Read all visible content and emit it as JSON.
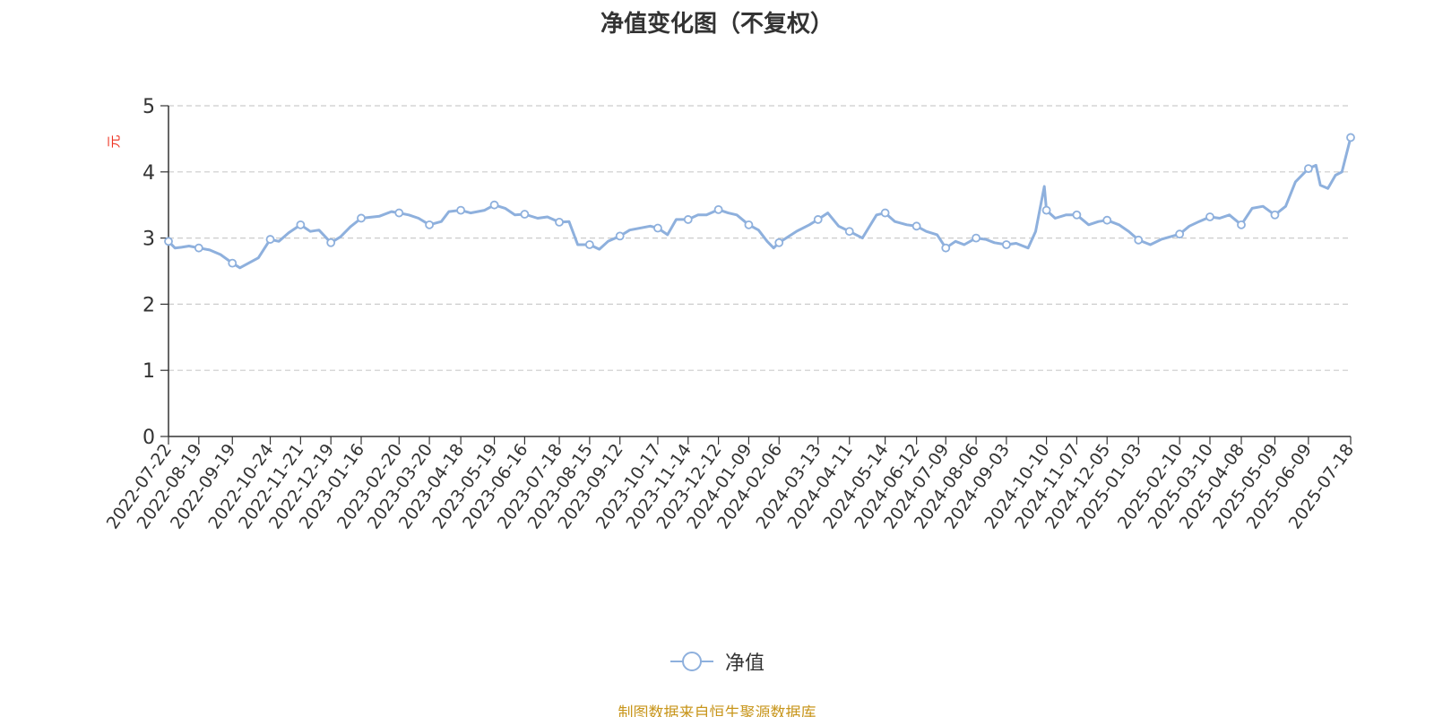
{
  "chart_data": {
    "type": "line",
    "title": "净值变化图（不复权）",
    "ylabel": "元",
    "ylim": [
      0,
      5
    ],
    "yticks": [
      "0",
      "1",
      "2",
      "3",
      "4",
      "5"
    ],
    "grid": true,
    "legend_position": "bottom-center",
    "x_tick_labels": [
      "2022-07-22",
      "2022-08-19",
      "2022-09-19",
      "2022-10-24",
      "2022-11-21",
      "2022-12-19",
      "2023-01-16",
      "2023-02-20",
      "2023-03-20",
      "2023-04-18",
      "2023-05-19",
      "2023-06-16",
      "2023-07-18",
      "2023-08-15",
      "2023-09-12",
      "2023-10-17",
      "2023-11-14",
      "2023-12-12",
      "2024-01-09",
      "2024-02-06",
      "2024-03-13",
      "2024-04-11",
      "2024-05-14",
      "2024-06-12",
      "2024-07-09",
      "2024-08-06",
      "2024-09-03",
      "2024-10-10",
      "2024-11-07",
      "2024-12-05",
      "2025-01-03",
      "2025-02-10",
      "2025-03-10",
      "2025-04-08",
      "2025-05-09",
      "2025-06-09",
      "2025-07-18"
    ],
    "series": [
      {
        "name": "净值",
        "color": "#8eb0dd",
        "x": [
          "2022-07-22",
          "2022-07-28",
          "2022-08-03",
          "2022-08-10",
          "2022-08-19",
          "2022-08-29",
          "2022-09-08",
          "2022-09-19",
          "2022-09-26",
          "2022-10-13",
          "2022-10-24",
          "2022-11-01",
          "2022-11-10",
          "2022-11-21",
          "2022-11-30",
          "2022-12-08",
          "2022-12-19",
          "2022-12-28",
          "2023-01-06",
          "2023-01-16",
          "2023-02-02",
          "2023-02-13",
          "2023-02-20",
          "2023-03-01",
          "2023-03-10",
          "2023-03-20",
          "2023-03-31",
          "2023-04-07",
          "2023-04-18",
          "2023-04-27",
          "2023-05-10",
          "2023-05-19",
          "2023-05-29",
          "2023-06-07",
          "2023-06-16",
          "2023-06-28",
          "2023-07-07",
          "2023-07-18",
          "2023-07-27",
          "2023-08-04",
          "2023-08-15",
          "2023-08-24",
          "2023-09-01",
          "2023-09-12",
          "2023-09-21",
          "2023-10-10",
          "2023-10-17",
          "2023-10-26",
          "2023-11-03",
          "2023-11-14",
          "2023-11-23",
          "2023-12-01",
          "2023-12-12",
          "2023-12-21",
          "2023-12-29",
          "2024-01-09",
          "2024-01-18",
          "2024-01-26",
          "2024-02-01",
          "2024-02-06",
          "2024-02-22",
          "2024-03-05",
          "2024-03-13",
          "2024-03-22",
          "2024-04-01",
          "2024-04-11",
          "2024-04-23",
          "2024-05-06",
          "2024-05-14",
          "2024-05-23",
          "2024-06-03",
          "2024-06-12",
          "2024-06-21",
          "2024-07-01",
          "2024-07-09",
          "2024-07-18",
          "2024-07-26",
          "2024-08-06",
          "2024-08-15",
          "2024-08-23",
          "2024-09-03",
          "2024-09-12",
          "2024-09-23",
          "2024-09-30",
          "2024-10-08",
          "2024-10-10",
          "2024-10-18",
          "2024-10-28",
          "2024-11-07",
          "2024-11-18",
          "2024-11-27",
          "2024-12-05",
          "2024-12-16",
          "2024-12-25",
          "2025-01-03",
          "2025-01-14",
          "2025-01-24",
          "2025-02-10",
          "2025-02-19",
          "2025-02-28",
          "2025-03-10",
          "2025-03-19",
          "2025-03-28",
          "2025-04-08",
          "2025-04-18",
          "2025-04-28",
          "2025-05-09",
          "2025-05-19",
          "2025-05-28",
          "2025-06-09",
          "2025-06-16",
          "2025-06-20",
          "2025-06-27",
          "2025-07-04",
          "2025-07-10",
          "2025-07-18"
        ],
        "values": [
          2.95,
          2.85,
          2.86,
          2.88,
          2.85,
          2.82,
          2.75,
          2.62,
          2.55,
          2.7,
          2.98,
          2.95,
          3.08,
          3.2,
          3.1,
          3.12,
          2.93,
          3.02,
          3.17,
          3.3,
          3.33,
          3.4,
          3.38,
          3.35,
          3.3,
          3.2,
          3.25,
          3.4,
          3.42,
          3.38,
          3.42,
          3.5,
          3.45,
          3.35,
          3.36,
          3.3,
          3.32,
          3.24,
          3.25,
          2.9,
          2.9,
          2.83,
          2.95,
          3.03,
          3.12,
          3.18,
          3.15,
          3.05,
          3.28,
          3.28,
          3.35,
          3.35,
          3.43,
          3.38,
          3.35,
          3.2,
          3.12,
          2.95,
          2.85,
          2.93,
          3.1,
          3.2,
          3.28,
          3.38,
          3.18,
          3.1,
          3.0,
          3.35,
          3.38,
          3.25,
          3.2,
          3.18,
          3.1,
          3.05,
          2.85,
          2.95,
          2.9,
          3.0,
          2.98,
          2.93,
          2.9,
          2.92,
          2.85,
          3.1,
          3.78,
          3.42,
          3.3,
          3.35,
          3.35,
          3.2,
          3.25,
          3.27,
          3.2,
          3.1,
          2.97,
          2.9,
          2.98,
          3.06,
          3.18,
          3.25,
          3.32,
          3.3,
          3.35,
          3.2,
          3.45,
          3.48,
          3.35,
          3.48,
          3.85,
          4.05,
          4.1,
          3.8,
          3.75,
          3.95,
          4.0,
          4.52
        ]
      }
    ]
  },
  "legend": {
    "label": "净值"
  },
  "footer": {
    "source": "制图数据来自恒生聚源数据库"
  }
}
